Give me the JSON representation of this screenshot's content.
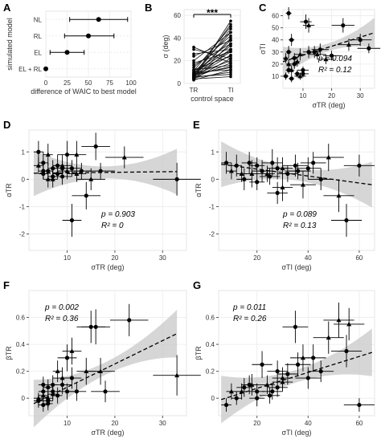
{
  "chart_data": [
    {
      "panel": "A",
      "type": "scatter",
      "subtype": "dot-whisker",
      "categories": [
        "NL",
        "RL",
        "EL",
        "EL + RL"
      ],
      "values": [
        62,
        50,
        25,
        0
      ],
      "ci_low": [
        28,
        22,
        5,
        0
      ],
      "ci_high": [
        96,
        80,
        45,
        0
      ],
      "xlabel": "difference of WAIC to best model",
      "ylabel": "simulated model",
      "xlim": [
        0,
        100
      ],
      "xticks": [
        0,
        25,
        50,
        75,
        100
      ],
      "grid": true
    },
    {
      "panel": "B",
      "type": "line",
      "subtype": "paired",
      "categories": [
        "TR",
        "TI"
      ],
      "pairs": [
        [
          3,
          12
        ],
        [
          4,
          22
        ],
        [
          4,
          30
        ],
        [
          5,
          55
        ],
        [
          5,
          35
        ],
        [
          5,
          18
        ],
        [
          6,
          40
        ],
        [
          6,
          25
        ],
        [
          6,
          48
        ],
        [
          7,
          28
        ],
        [
          7,
          15
        ],
        [
          7,
          52
        ],
        [
          8,
          38
        ],
        [
          8,
          20
        ],
        [
          9,
          45
        ],
        [
          9,
          30
        ],
        [
          10,
          33
        ],
        [
          11,
          50
        ],
        [
          12,
          24
        ],
        [
          14,
          42
        ],
        [
          16,
          35
        ],
        [
          18,
          28
        ],
        [
          20,
          45
        ],
        [
          24,
          38
        ],
        [
          26,
          30
        ],
        [
          30,
          22
        ],
        [
          32,
          18
        ],
        [
          5,
          10
        ],
        [
          6,
          8
        ],
        [
          8,
          14
        ],
        [
          10,
          12
        ],
        [
          4,
          6
        ],
        [
          12,
          16
        ]
      ],
      "ylabel": "σ (deg)",
      "xlabel": "control space",
      "ylim": [
        0,
        65
      ],
      "yticks": [
        0,
        20,
        40,
        60
      ],
      "annotation": "***",
      "grid": true
    },
    {
      "panel": "C",
      "type": "scatter",
      "x": [
        5,
        5,
        4,
        5,
        6,
        7,
        8,
        9,
        10,
        11,
        12,
        14,
        16,
        18,
        20,
        24,
        26,
        30,
        33,
        4,
        6,
        7,
        8,
        10,
        12,
        15,
        5,
        6,
        9
      ],
      "y": [
        62,
        20,
        10,
        30,
        15,
        25,
        12,
        28,
        12,
        55,
        52,
        30,
        32,
        24,
        27,
        52,
        36,
        40,
        33,
        25,
        40,
        20,
        22,
        15,
        30,
        28,
        15,
        8,
        10
      ],
      "y_err": [
        5,
        4,
        3,
        5,
        4,
        4,
        3,
        5,
        3,
        6,
        6,
        5,
        5,
        4,
        4,
        6,
        5,
        5,
        4,
        4,
        5,
        4,
        4,
        3,
        5,
        4,
        3,
        3,
        3
      ],
      "x_err": [
        1,
        1,
        1,
        1,
        1,
        1,
        1,
        2,
        2,
        2,
        2,
        2,
        3,
        3,
        3,
        4,
        4,
        4,
        4,
        1,
        1,
        1,
        1,
        2,
        2,
        3,
        1,
        1,
        2
      ],
      "xlabel": "σTR (deg)",
      "ylabel": "σTI",
      "xlim": [
        3,
        35
      ],
      "ylim": [
        0,
        65
      ],
      "xticks": [
        10,
        20,
        30
      ],
      "yticks": [
        10,
        20,
        30,
        40,
        50,
        60
      ],
      "trend": [
        [
          3,
          22
        ],
        [
          35,
          46
        ]
      ],
      "p_label": "p = 0.094",
      "r2_label": "R² = 0.12"
    },
    {
      "panel": "D",
      "type": "scatter",
      "x": [
        4,
        4,
        5,
        5,
        6,
        6,
        7,
        7,
        8,
        8,
        9,
        9,
        10,
        10,
        11,
        11,
        12,
        13,
        14,
        15,
        16,
        17,
        22,
        33,
        5,
        6,
        7,
        9,
        12
      ],
      "y": [
        1.0,
        0.5,
        0.6,
        0.2,
        0.9,
        0.3,
        0.4,
        0.0,
        0.5,
        0.2,
        0.5,
        0.1,
        0.9,
        0.3,
        -1.5,
        0.4,
        0.9,
        0.3,
        -0.6,
        0.0,
        1.2,
        0.3,
        0.8,
        0.0,
        0.3,
        0.0,
        0.1,
        0.4,
        0.2
      ],
      "y_err": [
        0.4,
        0.3,
        0.4,
        0.2,
        0.4,
        0.3,
        0.3,
        0.3,
        0.4,
        0.2,
        0.4,
        0.3,
        0.5,
        0.3,
        0.6,
        0.3,
        0.5,
        0.3,
        0.5,
        0.4,
        0.5,
        0.3,
        0.4,
        0.6,
        0.3,
        0.3,
        0.2,
        0.3,
        0.3
      ],
      "x_err": [
        1,
        1,
        1,
        1,
        1,
        1,
        1,
        1,
        1,
        1,
        2,
        2,
        2,
        2,
        2,
        2,
        2,
        2,
        3,
        3,
        3,
        3,
        4,
        5,
        1,
        1,
        1,
        2,
        2
      ],
      "xlabel": "σTR (deg)",
      "ylabel": "αTR",
      "xlim": [
        2,
        35
      ],
      "ylim": [
        -2.6,
        1.8
      ],
      "xticks": [
        10,
        20,
        30
      ],
      "yticks": [
        -2,
        -1,
        0,
        1
      ],
      "trend": [
        [
          3,
          0.22
        ],
        [
          33,
          0.28
        ]
      ],
      "p_label": "p = 0.903",
      "r2_label": "R² = 0"
    },
    {
      "panel": "E",
      "type": "scatter",
      "x": [
        8,
        10,
        12,
        15,
        18,
        20,
        22,
        24,
        26,
        28,
        30,
        32,
        35,
        38,
        40,
        45,
        52,
        55,
        60,
        14,
        17,
        25,
        30,
        36,
        42,
        48,
        20,
        28
      ],
      "y": [
        0.6,
        0.3,
        0.5,
        0.0,
        0.2,
        0.5,
        0.3,
        0.2,
        0.6,
        0.4,
        -0.3,
        0.2,
        0.5,
        -0.2,
        0.4,
        0.0,
        -0.6,
        -1.5,
        0.5,
        0.2,
        0.6,
        0.1,
        0.4,
        0.3,
        0.6,
        0.8,
        -0.1,
        -0.5
      ],
      "y_err": [
        0.4,
        0.3,
        0.4,
        0.4,
        0.5,
        0.3,
        0.4,
        0.3,
        0.5,
        0.4,
        0.5,
        0.3,
        0.4,
        0.5,
        0.4,
        0.4,
        0.6,
        0.6,
        0.4,
        0.3,
        0.4,
        0.3,
        0.4,
        0.3,
        0.4,
        0.5,
        0.3,
        0.4
      ],
      "x_err": [
        2,
        2,
        2,
        3,
        3,
        3,
        4,
        3,
        4,
        4,
        4,
        4,
        5,
        5,
        5,
        5,
        6,
        6,
        6,
        2,
        3,
        4,
        4,
        5,
        5,
        6,
        3,
        4
      ],
      "xlabel": "σTI (deg)",
      "ylabel": "αTR",
      "xlim": [
        5,
        66
      ],
      "ylim": [
        -2.6,
        1.8
      ],
      "xticks": [
        20,
        40,
        60
      ],
      "yticks": [
        -2,
        -1,
        0,
        1
      ],
      "trend": [
        [
          6,
          0.55
        ],
        [
          65,
          -0.2
        ]
      ],
      "p_label": "p = 0.089",
      "r2_label": "R² = 0.13"
    },
    {
      "panel": "F",
      "type": "scatter",
      "x": [
        4,
        4,
        5,
        5,
        5,
        6,
        6,
        6,
        7,
        7,
        8,
        8,
        9,
        9,
        10,
        10,
        11,
        11,
        12,
        14,
        15,
        16,
        17,
        18,
        23,
        33,
        5,
        6,
        7
      ],
      "y": [
        -0.02,
        0.0,
        -0.05,
        0.05,
        0.02,
        0.08,
        -0.02,
        0.0,
        0.05,
        0.1,
        0.2,
        0.02,
        0.1,
        0.15,
        0.3,
        0.05,
        0.35,
        0.15,
        0.05,
        0.2,
        0.53,
        0.53,
        0.2,
        0.05,
        0.58,
        0.17,
        0.1,
        -0.04,
        0.03
      ],
      "y_err": [
        0.05,
        0.04,
        0.05,
        0.06,
        0.05,
        0.06,
        0.05,
        0.05,
        0.06,
        0.07,
        0.08,
        0.06,
        0.07,
        0.08,
        0.1,
        0.06,
        0.1,
        0.08,
        0.07,
        0.1,
        0.12,
        0.13,
        0.1,
        0.08,
        0.12,
        0.15,
        0.06,
        0.05,
        0.05
      ],
      "x_err": [
        1,
        1,
        1,
        1,
        1,
        1,
        1,
        1,
        1,
        1,
        1,
        1,
        2,
        2,
        2,
        2,
        2,
        2,
        2,
        2,
        3,
        3,
        3,
        3,
        4,
        5,
        1,
        1,
        1
      ],
      "xlabel": "σTR (deg)",
      "ylabel": "βTR",
      "xlim": [
        2,
        35
      ],
      "ylim": [
        -0.13,
        0.8
      ],
      "xticks": [
        10,
        20,
        30
      ],
      "yticks": [
        0.0,
        0.2,
        0.4,
        0.6
      ],
      "trend": [
        [
          3,
          -0.04
        ],
        [
          33,
          0.48
        ]
      ],
      "p_label": "p = 0.002",
      "r2_label": "R² = 0.36"
    },
    {
      "panel": "G",
      "type": "scatter",
      "x": [
        8,
        10,
        12,
        15,
        18,
        20,
        22,
        24,
        26,
        28,
        30,
        32,
        35,
        38,
        40,
        45,
        52,
        55,
        60,
        14,
        17,
        25,
        30,
        36,
        42,
        48,
        20,
        28,
        56
      ],
      "y": [
        -0.05,
        0.05,
        0.0,
        0.08,
        0.1,
        0.0,
        0.25,
        0.1,
        0.05,
        0.2,
        0.12,
        0.18,
        0.53,
        0.3,
        0.15,
        0.2,
        0.58,
        0.35,
        -0.05,
        0.05,
        0.1,
        0.02,
        0.15,
        0.25,
        0.3,
        0.45,
        0.05,
        0.08,
        0.55
      ],
      "y_err": [
        0.05,
        0.06,
        0.05,
        0.07,
        0.08,
        0.06,
        0.1,
        0.07,
        0.06,
        0.08,
        0.07,
        0.08,
        0.12,
        0.1,
        0.08,
        0.08,
        0.13,
        0.12,
        0.05,
        0.06,
        0.07,
        0.06,
        0.08,
        0.09,
        0.1,
        0.12,
        0.06,
        0.07,
        0.12
      ],
      "x_err": [
        2,
        2,
        2,
        3,
        3,
        3,
        4,
        3,
        4,
        4,
        4,
        4,
        5,
        5,
        5,
        5,
        6,
        6,
        6,
        2,
        3,
        4,
        4,
        5,
        5,
        6,
        3,
        4,
        6
      ],
      "xlabel": "σTI (deg)",
      "ylabel": "βTR",
      "xlim": [
        5,
        66
      ],
      "ylim": [
        -0.13,
        0.8
      ],
      "xticks": [
        20,
        40,
        60
      ],
      "yticks": [
        0.0,
        0.2,
        0.4,
        0.6
      ],
      "trend": [
        [
          6,
          -0.01
        ],
        [
          65,
          0.34
        ]
      ],
      "p_label": "p = 0.011",
      "r2_label": "R² = 0.26"
    }
  ]
}
